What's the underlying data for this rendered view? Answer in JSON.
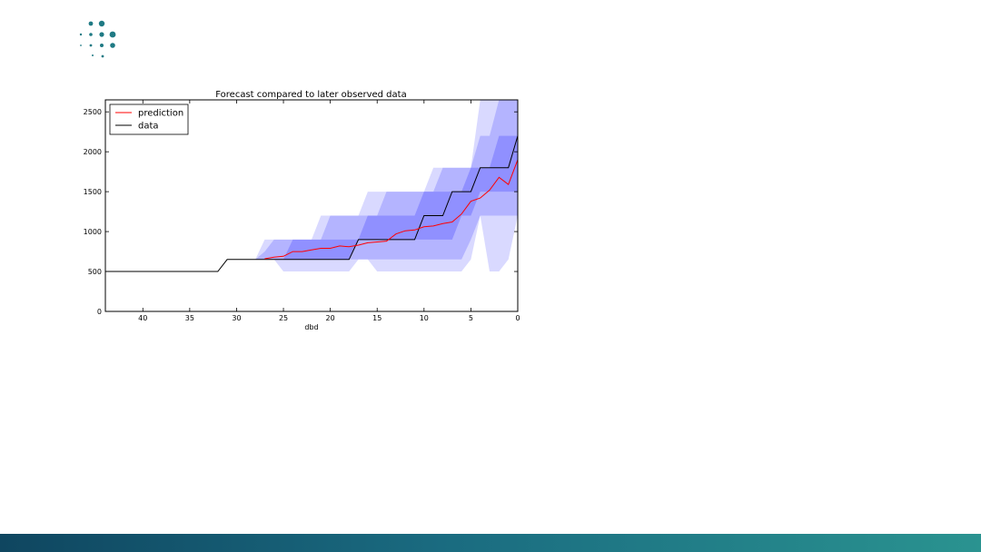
{
  "logo": {
    "icon": "dots-logo-icon",
    "color": "#1f7a84"
  },
  "chart_data": {
    "type": "line",
    "title": "Forecast compared to later observed data",
    "xlabel": "dbd",
    "ylabel": "",
    "x_reversed": true,
    "xlim": [
      44,
      0
    ],
    "ylim": [
      0,
      2650
    ],
    "x_ticks": [
      40,
      35,
      30,
      25,
      20,
      15,
      10,
      5,
      0
    ],
    "y_ticks": [
      0,
      500,
      1000,
      1500,
      2000,
      2500
    ],
    "grid": false,
    "legend": {
      "position": "top-left",
      "entries": [
        "prediction",
        "data"
      ]
    },
    "colors": {
      "prediction": "#ff0000",
      "data": "#000000",
      "band": "#0000ff"
    },
    "series": [
      {
        "name": "data",
        "x": [
          44,
          32,
          31,
          28,
          27,
          18,
          17,
          11,
          10,
          8,
          7,
          5,
          4,
          1,
          0
        ],
        "y": [
          500,
          500,
          650,
          650,
          650,
          650,
          900,
          900,
          1200,
          1200,
          1500,
          1500,
          1800,
          1800,
          2200
        ]
      },
      {
        "name": "prediction",
        "x": [
          27,
          26,
          25,
          24,
          23,
          22,
          21,
          20,
          19,
          18,
          17,
          16,
          15,
          14,
          13,
          12,
          11,
          10,
          9,
          8,
          7,
          6,
          5,
          4,
          3,
          2,
          1,
          0
        ],
        "y": [
          660,
          680,
          690,
          750,
          750,
          770,
          790,
          790,
          820,
          810,
          830,
          860,
          870,
          880,
          970,
          1010,
          1020,
          1060,
          1070,
          1100,
          1120,
          1220,
          1380,
          1420,
          1520,
          1680,
          1590,
          1900
        ]
      }
    ],
    "bands": [
      {
        "level": "outer",
        "x": [
          28,
          27,
          26,
          25,
          24,
          23,
          22,
          21,
          20,
          19,
          18,
          17,
          16,
          15,
          14,
          13,
          12,
          11,
          10,
          9,
          8,
          7,
          6,
          5,
          4,
          3,
          2,
          1,
          0
        ],
        "lower": [
          650,
          650,
          650,
          500,
          500,
          500,
          500,
          500,
          500,
          500,
          500,
          650,
          650,
          500,
          500,
          500,
          500,
          500,
          500,
          500,
          500,
          500,
          500,
          650,
          1200,
          500,
          500,
          650,
          1200
        ],
        "upper": [
          650,
          900,
          900,
          900,
          900,
          900,
          900,
          1200,
          1200,
          1200,
          1200,
          1200,
          1500,
          1500,
          1500,
          1500,
          1500,
          1500,
          1500,
          1800,
          1800,
          1800,
          1800,
          1800,
          2650,
          2650,
          2650,
          2650,
          2650
        ]
      },
      {
        "level": "middle",
        "x": [
          28,
          27,
          26,
          25,
          24,
          23,
          22,
          21,
          20,
          19,
          18,
          17,
          16,
          15,
          14,
          13,
          12,
          11,
          10,
          9,
          8,
          7,
          6,
          5,
          4,
          3,
          2,
          1,
          0
        ],
        "lower": [
          650,
          650,
          650,
          650,
          650,
          650,
          650,
          650,
          650,
          650,
          650,
          650,
          650,
          650,
          650,
          650,
          650,
          650,
          650,
          650,
          650,
          650,
          650,
          900,
          1200,
          1200,
          1200,
          1200,
          1200
        ],
        "upper": [
          650,
          750,
          900,
          900,
          900,
          900,
          900,
          900,
          1200,
          1200,
          1200,
          1200,
          1200,
          1200,
          1500,
          1500,
          1500,
          1500,
          1500,
          1500,
          1800,
          1800,
          1800,
          1800,
          2200,
          2200,
          2650,
          2650,
          2650
        ]
      },
      {
        "level": "inner",
        "x": [
          28,
          27,
          26,
          25,
          24,
          23,
          22,
          21,
          20,
          19,
          18,
          17,
          16,
          15,
          14,
          13,
          12,
          11,
          10,
          9,
          8,
          7,
          6,
          5,
          4,
          3,
          2,
          1,
          0
        ],
        "lower": [
          650,
          650,
          650,
          650,
          650,
          650,
          650,
          650,
          650,
          650,
          650,
          900,
          900,
          900,
          900,
          900,
          900,
          900,
          900,
          900,
          900,
          900,
          1200,
          1200,
          1500,
          1500,
          1500,
          1500,
          1500
        ],
        "upper": [
          650,
          650,
          650,
          650,
          900,
          900,
          900,
          900,
          900,
          900,
          900,
          900,
          1200,
          1200,
          1200,
          1200,
          1200,
          1200,
          1500,
          1500,
          1500,
          1500,
          1500,
          1800,
          1800,
          1800,
          2200,
          2200,
          2200
        ]
      }
    ]
  }
}
